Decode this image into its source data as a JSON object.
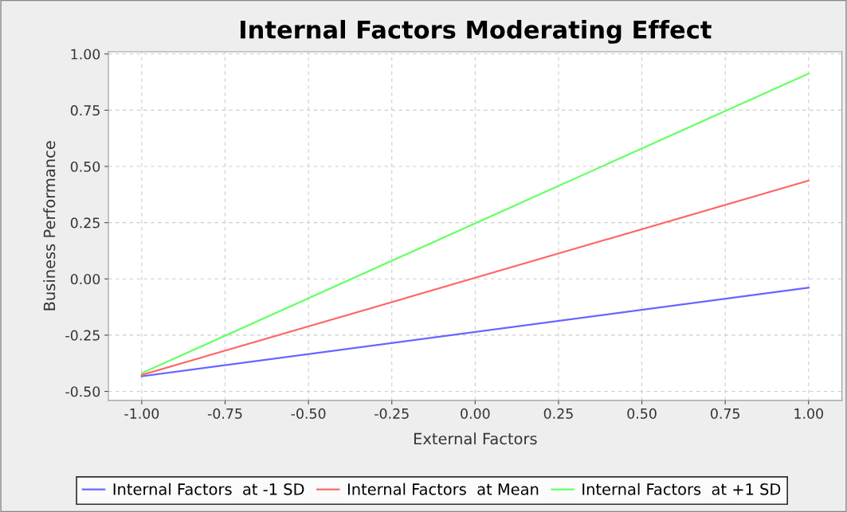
{
  "chart_data": {
    "type": "line",
    "title": "Internal Factors Moderating Effect",
    "xlabel": "External Factors",
    "ylabel": "Business Performance",
    "x": [
      -1.0,
      1.0
    ],
    "series": [
      {
        "name": "Internal Factors  at -1 SD",
        "color": "#6666ff",
        "values": [
          -0.433,
          -0.039
        ]
      },
      {
        "name": "Internal Factors  at Mean",
        "color": "#ff6666",
        "values": [
          -0.427,
          0.437
        ]
      },
      {
        "name": "Internal Factors  at +1 SD",
        "color": "#66ff66",
        "values": [
          -0.419,
          0.913
        ]
      }
    ],
    "xlim": [
      -1.1,
      1.1
    ],
    "xticks": [
      {
        "value": -1,
        "label": "-1.00"
      },
      {
        "value": -0.75,
        "label": "-0.75"
      },
      {
        "value": -0.5,
        "label": "-0.50"
      },
      {
        "value": -0.25,
        "label": "-0.25"
      },
      {
        "value": 0,
        "label": "0.00"
      },
      {
        "value": 0.25,
        "label": "0.25"
      },
      {
        "value": 0.5,
        "label": "0.50"
      },
      {
        "value": 0.75,
        "label": "0.75"
      },
      {
        "value": 1,
        "label": "1.00"
      }
    ],
    "ylim": [
      -0.54,
      1.01
    ],
    "yticks": [
      {
        "value": -0.5,
        "label": "-0.50"
      },
      {
        "value": -0.25,
        "label": "-0.25"
      },
      {
        "value": 0,
        "label": "0.00"
      },
      {
        "value": 0.25,
        "label": "0.25"
      },
      {
        "value": 0.5,
        "label": "0.50"
      },
      {
        "value": 0.75,
        "label": "0.75"
      },
      {
        "value": 1,
        "label": "1.00"
      }
    ],
    "grid": true,
    "legend": "bottom",
    "marker": "none",
    "line_style": "solid"
  }
}
